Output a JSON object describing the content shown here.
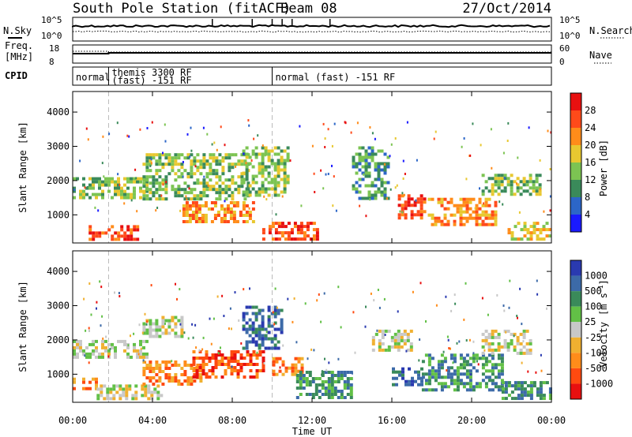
{
  "header": {
    "title": "South Pole Station (fitACF)",
    "beam": "Beam 08",
    "date": "27/Oct/2014"
  },
  "summary_panels": {
    "nsky": {
      "label": "N.Sky",
      "ticks": [
        "10^5",
        "10^0"
      ]
    },
    "nsearch": {
      "label": "N.Search",
      "ticks": [
        "10^5",
        "10^0"
      ]
    },
    "freq": {
      "label_line1": "Freq.",
      "label_line2": "[MHz]",
      "ticks": [
        "18",
        "8"
      ]
    },
    "nave": {
      "label": "Nave",
      "ticks": [
        "60",
        "0"
      ]
    },
    "cpid": {
      "label": "CPID",
      "segments": [
        {
          "start_hour": 0,
          "end_hour": 1.8,
          "text": "normal",
          "text2": ""
        },
        {
          "start_hour": 1.8,
          "end_hour": 10.0,
          "text": "themis 3300 RF",
          "text2": "(fast) -151 RF"
        },
        {
          "start_hour": 10.0,
          "end_hour": 24,
          "text": "normal (fast) -151 RF",
          "text2": ""
        }
      ]
    }
  },
  "chart_data": [
    {
      "type": "heatmap",
      "name": "power",
      "xlabel": "",
      "ylabel": "Slant Range [km]",
      "xlim": [
        0,
        24
      ],
      "ylim": [
        180,
        4600
      ],
      "yticks": [
        "1000",
        "2000",
        "3000",
        "4000"
      ],
      "ytick_values": [
        1000,
        2000,
        3000,
        4000
      ],
      "colorbar": {
        "label": "Power [dB]",
        "ticks": [
          "4",
          "8",
          "12",
          "16",
          "20",
          "24",
          "28"
        ],
        "colors": [
          "#1a1aff",
          "#2c66c8",
          "#3a8a5a",
          "#7cc452",
          "#e8c830",
          "#ff8c1a",
          "#ff4a1a",
          "#e81010"
        ]
      },
      "regions": [
        {
          "x0": 0.0,
          "x1": 3.8,
          "y0": 1500,
          "y1": 2100,
          "level": 3
        },
        {
          "x0": 0.8,
          "x1": 3.2,
          "y0": 250,
          "y1": 700,
          "level": 6
        },
        {
          "x0": 3.5,
          "x1": 8.8,
          "y0": 1500,
          "y1": 2800,
          "level": 3
        },
        {
          "x0": 5.5,
          "x1": 9.0,
          "y0": 800,
          "y1": 1400,
          "level": 5
        },
        {
          "x0": 8.5,
          "x1": 10.8,
          "y0": 1600,
          "y1": 3000,
          "level": 3
        },
        {
          "x0": 9.5,
          "x1": 12.2,
          "y0": 300,
          "y1": 800,
          "level": 6
        },
        {
          "x0": 14.0,
          "x1": 15.8,
          "y0": 1500,
          "y1": 3000,
          "level": 2
        },
        {
          "x0": 16.3,
          "x1": 17.6,
          "y0": 900,
          "y1": 1600,
          "level": 6
        },
        {
          "x0": 17.8,
          "x1": 21.2,
          "y0": 700,
          "y1": 1500,
          "level": 5
        },
        {
          "x0": 20.5,
          "x1": 23.5,
          "y0": 1600,
          "y1": 2200,
          "level": 3
        },
        {
          "x0": 21.8,
          "x1": 24.0,
          "y0": 300,
          "y1": 800,
          "level": 4
        }
      ]
    },
    {
      "type": "heatmap",
      "name": "velocity",
      "xlabel": "Time UT",
      "ylabel": "Slant Range [km]",
      "xlim": [
        0,
        24
      ],
      "ylim": [
        180,
        4600
      ],
      "xticks": [
        "00:00",
        "04:00",
        "08:00",
        "12:00",
        "16:00",
        "20:00",
        "00:00"
      ],
      "xtick_values": [
        0,
        4,
        8,
        12,
        16,
        20,
        24
      ],
      "yticks": [
        "1000",
        "2000",
        "3000",
        "4000"
      ],
      "ytick_values": [
        1000,
        2000,
        3000,
        4000
      ],
      "colorbar": {
        "label": "Velocity",
        "units": "m s",
        "units_exp": "-1",
        "ticks": [
          "1000",
          "500",
          "100",
          "25",
          "-25",
          "-100",
          "-500",
          "-1000"
        ],
        "colors": [
          "#2a3ab0",
          "#3c6aa8",
          "#3a8a5a",
          "#62c046",
          "#c8c8c8",
          "#f0b030",
          "#ff8c1a",
          "#ff4a10",
          "#e81010"
        ]
      },
      "regions": [
        {
          "x0": 0.0,
          "x1": 3.8,
          "y0": 1500,
          "y1": 2000,
          "level": 4
        },
        {
          "x0": 0.0,
          "x1": 1.2,
          "y0": 600,
          "y1": 900,
          "level": 6
        },
        {
          "x0": 1.2,
          "x1": 4.5,
          "y0": 300,
          "y1": 700,
          "level": 4
        },
        {
          "x0": 3.5,
          "x1": 5.5,
          "y0": 2100,
          "y1": 2700,
          "level": 4
        },
        {
          "x0": 3.5,
          "x1": 6.5,
          "y0": 700,
          "y1": 1400,
          "level": 6
        },
        {
          "x0": 6.0,
          "x1": 9.5,
          "y0": 900,
          "y1": 1700,
          "level": 7
        },
        {
          "x0": 8.5,
          "x1": 10.5,
          "y0": 1800,
          "y1": 3000,
          "level": 1
        },
        {
          "x0": 10.0,
          "x1": 11.5,
          "y0": 1000,
          "y1": 1500,
          "level": 6
        },
        {
          "x0": 11.2,
          "x1": 14.0,
          "y0": 300,
          "y1": 1100,
          "level": 2
        },
        {
          "x0": 15.0,
          "x1": 17.0,
          "y0": 1700,
          "y1": 2300,
          "level": 4
        },
        {
          "x0": 16.0,
          "x1": 17.5,
          "y0": 700,
          "y1": 1200,
          "level": 1
        },
        {
          "x0": 17.5,
          "x1": 21.5,
          "y0": 500,
          "y1": 1600,
          "level": 2
        },
        {
          "x0": 20.5,
          "x1": 23.0,
          "y0": 1600,
          "y1": 2300,
          "level": 4
        },
        {
          "x0": 21.5,
          "x1": 24.0,
          "y0": 300,
          "y1": 800,
          "level": 2
        }
      ]
    }
  ]
}
